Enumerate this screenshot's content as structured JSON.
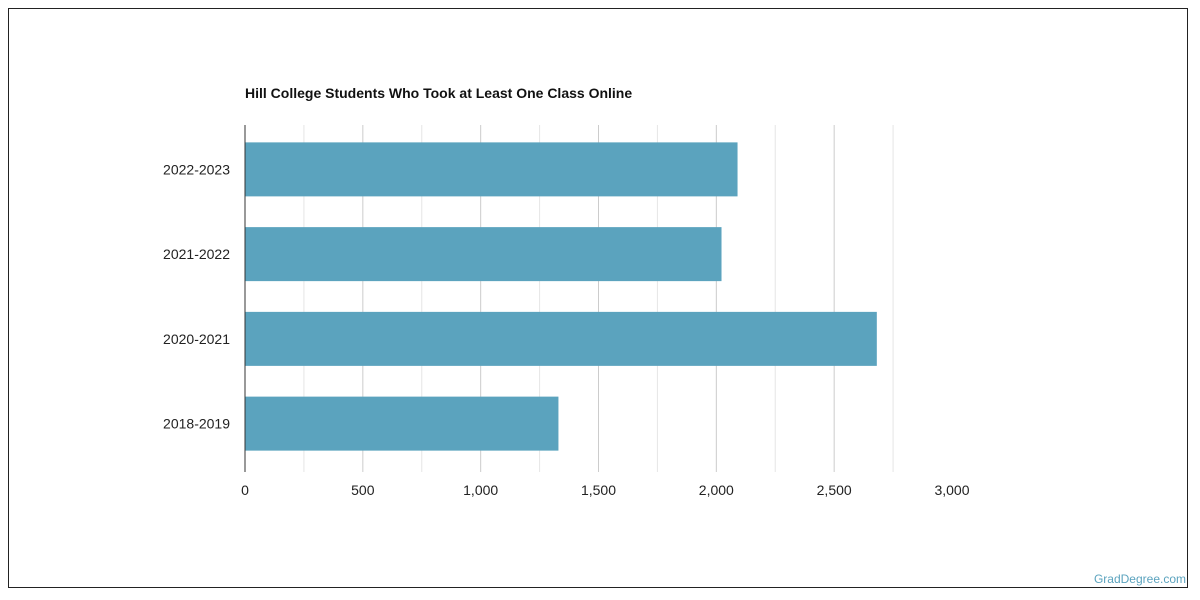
{
  "chart_data": {
    "type": "bar",
    "orientation": "horizontal",
    "title": "Hill College Students Who Took at Least One Class Online",
    "categories": [
      "2022-2023",
      "2021-2022",
      "2020-2021",
      "2018-2019"
    ],
    "values": [
      2090,
      2022,
      2681,
      1330
    ],
    "xlim": [
      0,
      3000
    ],
    "xticks": [
      0,
      500,
      1000,
      1500,
      2000,
      2500,
      3000
    ],
    "xtick_labels": [
      "0",
      "500",
      "1,000",
      "1,500",
      "2,000",
      "2,500",
      "3,000"
    ],
    "grid": true,
    "bar_color": "#5ba3be"
  },
  "credit": "GradDegree.com"
}
